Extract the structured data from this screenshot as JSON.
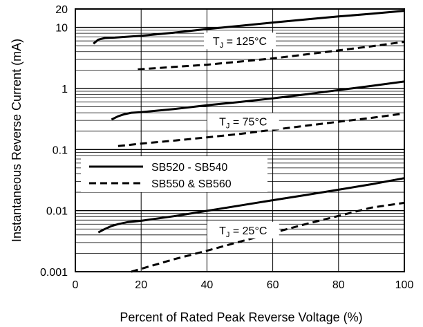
{
  "chart_data": {
    "type": "line",
    "title": "",
    "xlabel": "Percent of Rated Peak Reverse Voltage (%)",
    "ylabel": "Instantaneous Reverse Current (mA)",
    "x_scale": "linear",
    "y_scale": "log",
    "xlim": [
      0,
      100
    ],
    "ylim": [
      0.001,
      20
    ],
    "x_ticks": [
      0,
      20,
      40,
      60,
      80,
      100
    ],
    "x_tick_labels": [
      "0",
      "20",
      "40",
      "60",
      "80",
      "100"
    ],
    "y_ticks": [
      0.001,
      0.01,
      0.1,
      1,
      10,
      20
    ],
    "y_tick_labels": [
      "0.001",
      "0.01",
      "0.1",
      "1",
      "10",
      "20"
    ],
    "grid": true,
    "legend_placement": "middle-left",
    "series": [
      {
        "name": "SB520 - SB540",
        "style": "solid",
        "color": "#000000",
        "curves": [
          {
            "x": [
              5.5,
              7,
              9,
              12,
              20,
              30,
              40,
              50,
              60,
              70,
              80,
              90,
              100
            ],
            "y": [
              5.4,
              6.3,
              6.7,
              6.8,
              7.3,
              8.2,
              9.4,
              10.6,
              12.0,
              13.5,
              15.1,
              16.7,
              18.7
            ]
          },
          {
            "x": [
              11,
              13,
              15,
              17,
              20,
              30,
              40,
              50,
              60,
              70,
              80,
              90,
              100
            ],
            "y": [
              0.31,
              0.35,
              0.38,
              0.4,
              0.41,
              0.46,
              0.53,
              0.6,
              0.69,
              0.8,
              0.94,
              1.1,
              1.3
            ]
          },
          {
            "x": [
              7,
              9,
              11,
              13,
              16,
              20,
              30,
              40,
              50,
              60,
              70,
              80,
              90,
              100
            ],
            "y": [
              0.0044,
              0.005,
              0.0056,
              0.006,
              0.0065,
              0.0068,
              0.0081,
              0.0099,
              0.0121,
              0.0148,
              0.018,
              0.022,
              0.027,
              0.034
            ]
          }
        ]
      },
      {
        "name": "SB550 & SB560",
        "style": "dashed",
        "color": "#000000",
        "curves": [
          {
            "x": [
              19,
              30,
              40,
              50,
              60,
              70,
              80,
              90,
              100
            ],
            "y": [
              2.05,
              2.25,
              2.45,
              2.75,
              3.1,
              3.6,
              4.2,
              4.9,
              5.8
            ]
          },
          {
            "x": [
              13,
              20,
              30,
              40,
              50,
              60,
              70,
              80,
              90,
              100
            ],
            "y": [
              0.114,
              0.125,
              0.14,
              0.158,
              0.18,
              0.21,
              0.245,
              0.285,
              0.33,
              0.39
            ]
          },
          {
            "x": [
              17,
              30,
              40,
              50,
              60,
              70,
              80,
              90,
              100
            ],
            "y": [
              0.001,
              0.0016,
              0.0022,
              0.0031,
              0.0043,
              0.006,
              0.0082,
              0.0112,
              0.0134
            ]
          }
        ]
      }
    ],
    "annotations": [
      {
        "id": "tj125",
        "prefix": "T",
        "sub": "J",
        "suffix": " = 125°C",
        "x": 50,
        "y": 6.0
      },
      {
        "id": "tj75",
        "prefix": "T",
        "sub": "J",
        "suffix": " = 75°C",
        "x": 51,
        "y": 0.29
      },
      {
        "id": "tj25",
        "prefix": "T",
        "sub": "J",
        "suffix": " = 25°C",
        "x": 51,
        "y": 0.0048
      }
    ]
  }
}
